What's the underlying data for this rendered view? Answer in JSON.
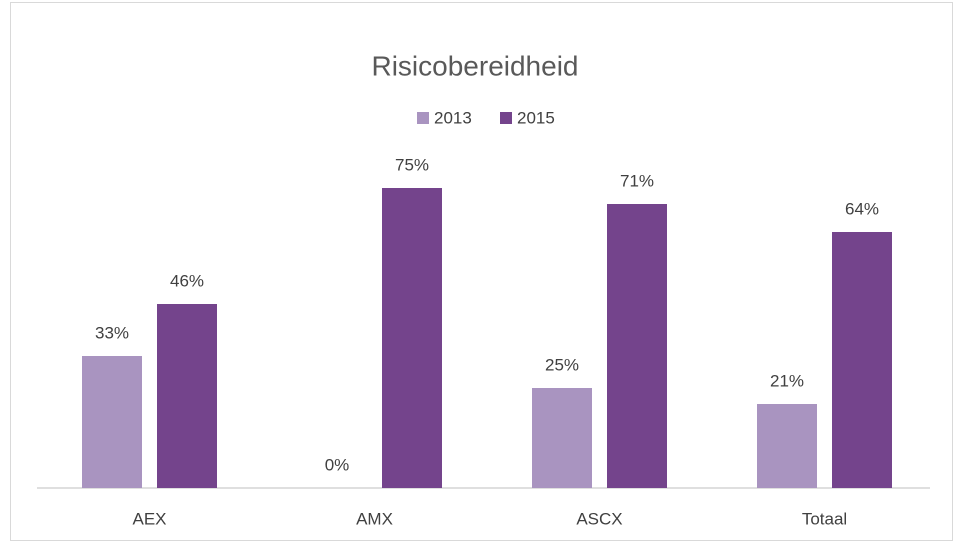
{
  "chart_data": {
    "type": "bar",
    "title": "Risicobereidheid",
    "categories": [
      "AEX",
      "AMX",
      "ASCX",
      "Totaal"
    ],
    "series": [
      {
        "name": "2013",
        "color": "#a994c0",
        "values": [
          33,
          0,
          25,
          21
        ],
        "value_labels": [
          "33%",
          "0%",
          "25%",
          "21%"
        ]
      },
      {
        "name": "2015",
        "color": "#74448c",
        "values": [
          46,
          75,
          71,
          64
        ],
        "value_labels": [
          "46%",
          "75%",
          "71%",
          "64%"
        ]
      }
    ],
    "legend": "top"
  }
}
